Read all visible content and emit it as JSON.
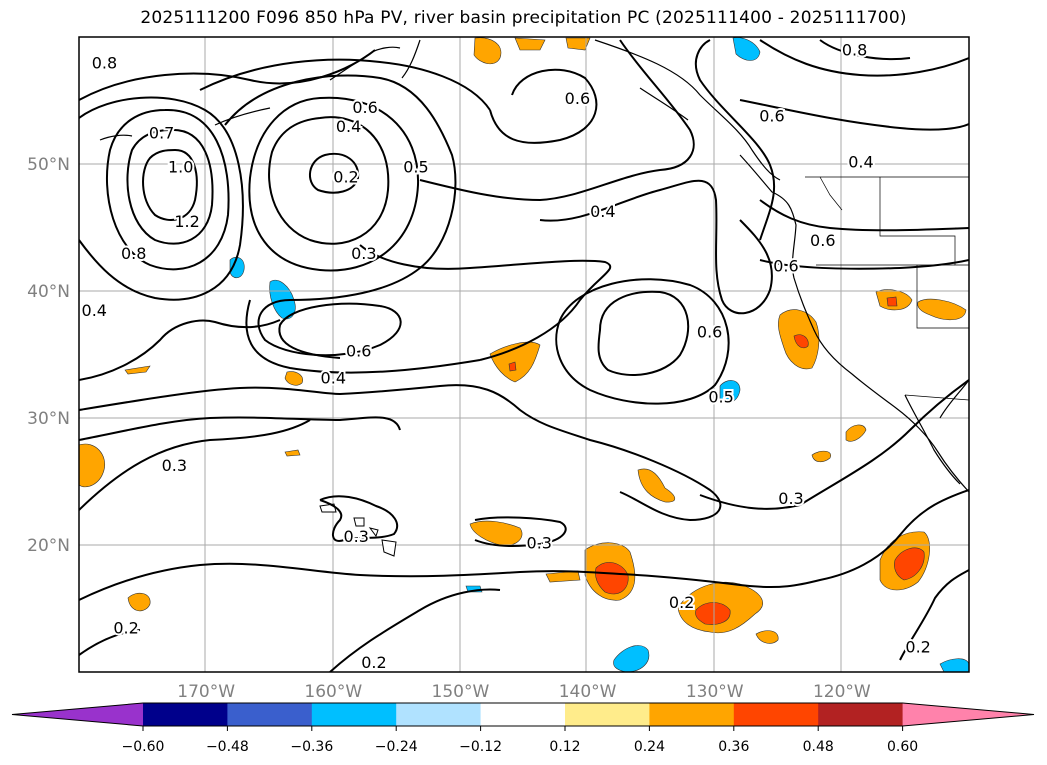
{
  "title": "2025111200 F096 850 hPa PV, river basin precipitation PC (2025111400 - 2025111700)",
  "map": {
    "lon_range": [
      -180,
      -110
    ],
    "lat_range": [
      10,
      60
    ],
    "lon_ticks": [
      {
        "lon": -170,
        "label": "170°W"
      },
      {
        "lon": -160,
        "label": "160°W"
      },
      {
        "lon": -150,
        "label": "150°W"
      },
      {
        "lon": -140,
        "label": "140°W"
      },
      {
        "lon": -130,
        "label": "130°W"
      },
      {
        "lon": -120,
        "label": "120°W"
      }
    ],
    "lat_ticks": [
      {
        "lat": 50,
        "label": "50°N"
      },
      {
        "lat": 40,
        "label": "40°N"
      },
      {
        "lat": 30,
        "label": "30°N"
      },
      {
        "lat": 20,
        "label": "20°N"
      }
    ],
    "contour_labels": [
      {
        "text": "0.8",
        "lon": -178.0,
        "lat": 58.0
      },
      {
        "text": "0.7",
        "lon": -173.5,
        "lat": 52.5
      },
      {
        "text": "1.0",
        "lon": -172.0,
        "lat": 49.8
      },
      {
        "text": "1.2",
        "lon": -171.5,
        "lat": 45.5
      },
      {
        "text": "0.8",
        "lon": -175.7,
        "lat": 43.0
      },
      {
        "text": "0.4",
        "lon": -178.8,
        "lat": 38.5
      },
      {
        "text": "0.6",
        "lon": -157.5,
        "lat": 54.5
      },
      {
        "text": "0.4",
        "lon": -158.8,
        "lat": 53.0
      },
      {
        "text": "0.2",
        "lon": -159.0,
        "lat": 49.0
      },
      {
        "text": "0.3",
        "lon": -157.6,
        "lat": 43.0
      },
      {
        "text": "0.5",
        "lon": -153.5,
        "lat": 49.8
      },
      {
        "text": "0.6",
        "lon": -158.0,
        "lat": 35.3
      },
      {
        "text": "0.4",
        "lon": -160.0,
        "lat": 33.2
      },
      {
        "text": "0.3",
        "lon": -172.5,
        "lat": 26.3
      },
      {
        "text": "0.3",
        "lon": -158.2,
        "lat": 20.7
      },
      {
        "text": "0.3",
        "lon": -143.8,
        "lat": 20.2
      },
      {
        "text": "0.2",
        "lon": -132.6,
        "lat": 15.5
      },
      {
        "text": "0.2",
        "lon": -176.3,
        "lat": 13.5
      },
      {
        "text": "0.2",
        "lon": -156.8,
        "lat": 10.8
      },
      {
        "text": "0.6",
        "lon": -140.8,
        "lat": 55.2
      },
      {
        "text": "0.4",
        "lon": -138.8,
        "lat": 46.3
      },
      {
        "text": "0.6",
        "lon": -130.4,
        "lat": 36.8
      },
      {
        "text": "0.5",
        "lon": -129.5,
        "lat": 31.7
      },
      {
        "text": "0.6",
        "lon": -124.4,
        "lat": 42.0
      },
      {
        "text": "0.6",
        "lon": -125.5,
        "lat": 53.8
      },
      {
        "text": "0.8",
        "lon": -119.0,
        "lat": 59.0
      },
      {
        "text": "0.4",
        "lon": -118.5,
        "lat": 50.2
      },
      {
        "text": "0.6",
        "lon": -121.5,
        "lat": 44.0
      },
      {
        "text": "0.3",
        "lon": -124.0,
        "lat": 23.7
      },
      {
        "text": "0.2",
        "lon": -114.0,
        "lat": 12.0
      }
    ]
  },
  "colorbar": {
    "ticks": [
      "−0.60",
      "−0.48",
      "−0.36",
      "−0.24",
      "−0.12",
      "0.12",
      "0.24",
      "0.36",
      "0.48",
      "0.60"
    ],
    "colors": [
      "#9932cc",
      "#00008b",
      "#3a5fcd",
      "#00bfff",
      "#b0e2ff",
      "#ffffff",
      "#ffec8b",
      "#ffa500",
      "#ff4500",
      "#b22222",
      "#ff82ab"
    ]
  }
}
